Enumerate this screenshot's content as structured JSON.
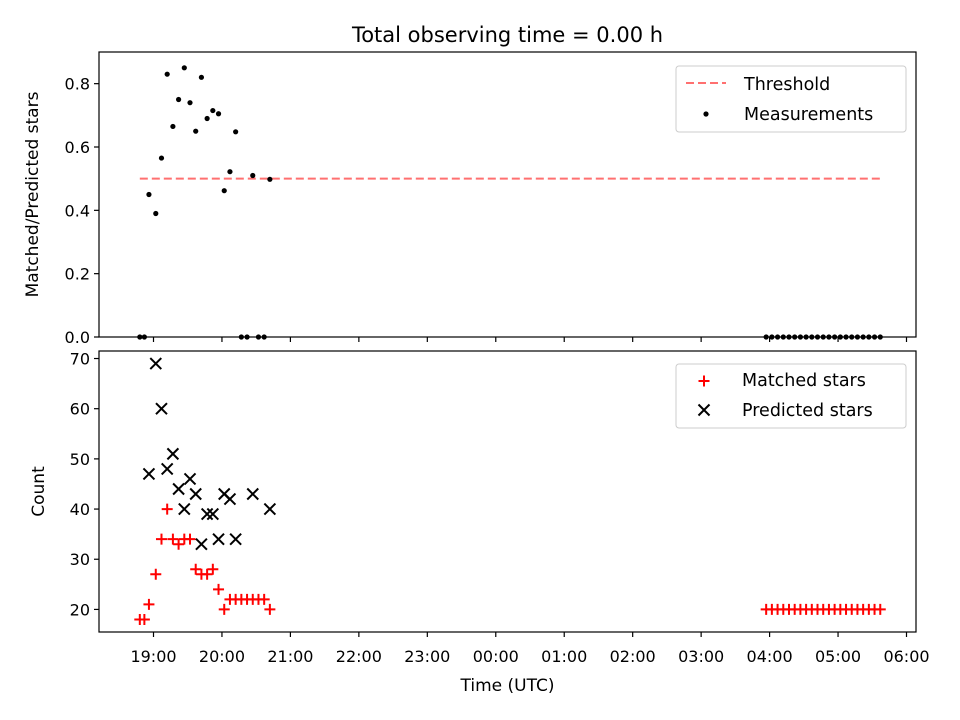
{
  "chart_data": [
    {
      "type": "scatter",
      "title": "Total observing time = 0.00 h",
      "ylabel": "Matched/Predicted stars",
      "xlabel": "",
      "ylim": [
        0,
        0.9
      ],
      "yticks": [
        "0.0",
        "0.2",
        "0.4",
        "0.6",
        "0.8"
      ],
      "legend": {
        "placement": "top-right",
        "entries": [
          "Threshold",
          "Measurements"
        ]
      },
      "series": [
        {
          "name": "Threshold",
          "style": "dashed-line",
          "color": "#ff7070",
          "x": [
            "18:48",
            "05:40"
          ],
          "y": [
            0.5,
            0.5
          ]
        },
        {
          "name": "Measurements",
          "style": "dot",
          "color": "#000000",
          "x": [
            "18:48",
            "18:52",
            "18:56",
            "19:02",
            "19:07",
            "19:12",
            "19:17",
            "19:22",
            "19:27",
            "19:32",
            "19:37",
            "19:42",
            "19:47",
            "19:52",
            "19:57",
            "20:02",
            "20:07",
            "20:12",
            "20:17",
            "20:22",
            "20:27",
            "20:32",
            "20:37",
            "20:42",
            "03:57",
            "04:02",
            "04:07",
            "04:12",
            "04:17",
            "04:22",
            "04:27",
            "04:32",
            "04:37",
            "04:42",
            "04:47",
            "04:52",
            "04:57",
            "05:02",
            "05:07",
            "05:12",
            "05:17",
            "05:22",
            "05:27",
            "05:32",
            "05:37"
          ],
          "y": [
            0.0,
            0.0,
            0.45,
            0.39,
            0.565,
            0.83,
            0.665,
            0.75,
            0.85,
            0.74,
            0.65,
            0.82,
            0.69,
            0.715,
            0.705,
            0.462,
            0.522,
            0.648,
            0.0,
            0.0,
            0.51,
            0.0,
            0.0,
            0.498,
            0.0,
            0.0,
            0.0,
            0.0,
            0.0,
            0.0,
            0.0,
            0.0,
            0.0,
            0.0,
            0.0,
            0.0,
            0.0,
            0.0,
            0.0,
            0.0,
            0.0,
            0.0,
            0.0,
            0.0,
            0.0
          ]
        }
      ]
    },
    {
      "type": "scatter",
      "title": "",
      "ylabel": "Count",
      "xlabel": "Time (UTC)",
      "ylim": [
        15.5,
        71.5
      ],
      "yticks": [
        "20",
        "30",
        "40",
        "50",
        "60",
        "70"
      ],
      "xticks": [
        "19:00",
        "20:00",
        "21:00",
        "22:00",
        "23:00",
        "00:00",
        "01:00",
        "02:00",
        "03:00",
        "04:00",
        "05:00",
        "06:00"
      ],
      "legend": {
        "placement": "top-right",
        "entries": [
          "Matched stars",
          "Predicted stars"
        ]
      },
      "series": [
        {
          "name": "Matched stars",
          "marker": "plus",
          "color": "#ff0000",
          "x": [
            "18:48",
            "18:52",
            "18:56",
            "19:02",
            "19:07",
            "19:12",
            "19:17",
            "19:22",
            "19:27",
            "19:32",
            "19:37",
            "19:42",
            "19:47",
            "19:52",
            "19:57",
            "20:02",
            "20:07",
            "20:12",
            "20:17",
            "20:22",
            "20:27",
            "20:32",
            "20:37",
            "20:42",
            "03:57",
            "04:02",
            "04:07",
            "04:12",
            "04:17",
            "04:22",
            "04:27",
            "04:32",
            "04:37",
            "04:42",
            "04:47",
            "04:52",
            "04:57",
            "05:02",
            "05:07",
            "05:12",
            "05:17",
            "05:22",
            "05:27",
            "05:32",
            "05:37"
          ],
          "y": [
            18,
            18,
            21,
            27,
            34,
            40,
            34,
            33,
            34,
            34,
            28,
            27,
            27,
            28,
            24,
            20,
            22,
            22,
            22,
            22,
            22,
            22,
            22,
            20,
            20,
            20,
            20,
            20,
            20,
            20,
            20,
            20,
            20,
            20,
            20,
            20,
            20,
            20,
            20,
            20,
            20,
            20,
            20,
            20,
            20
          ]
        },
        {
          "name": "Predicted stars",
          "marker": "x",
          "color": "#000000",
          "x": [
            "18:56",
            "19:02",
            "19:07",
            "19:12",
            "19:17",
            "19:22",
            "19:27",
            "19:32",
            "19:37",
            "19:42",
            "19:47",
            "19:52",
            "19:57",
            "20:02",
            "20:07",
            "20:12",
            "20:27",
            "20:42"
          ],
          "y": [
            47,
            69,
            60,
            48,
            51,
            44,
            40,
            46,
            43,
            33,
            39,
            39,
            34,
            43,
            42,
            34,
            43,
            40
          ]
        }
      ]
    }
  ]
}
